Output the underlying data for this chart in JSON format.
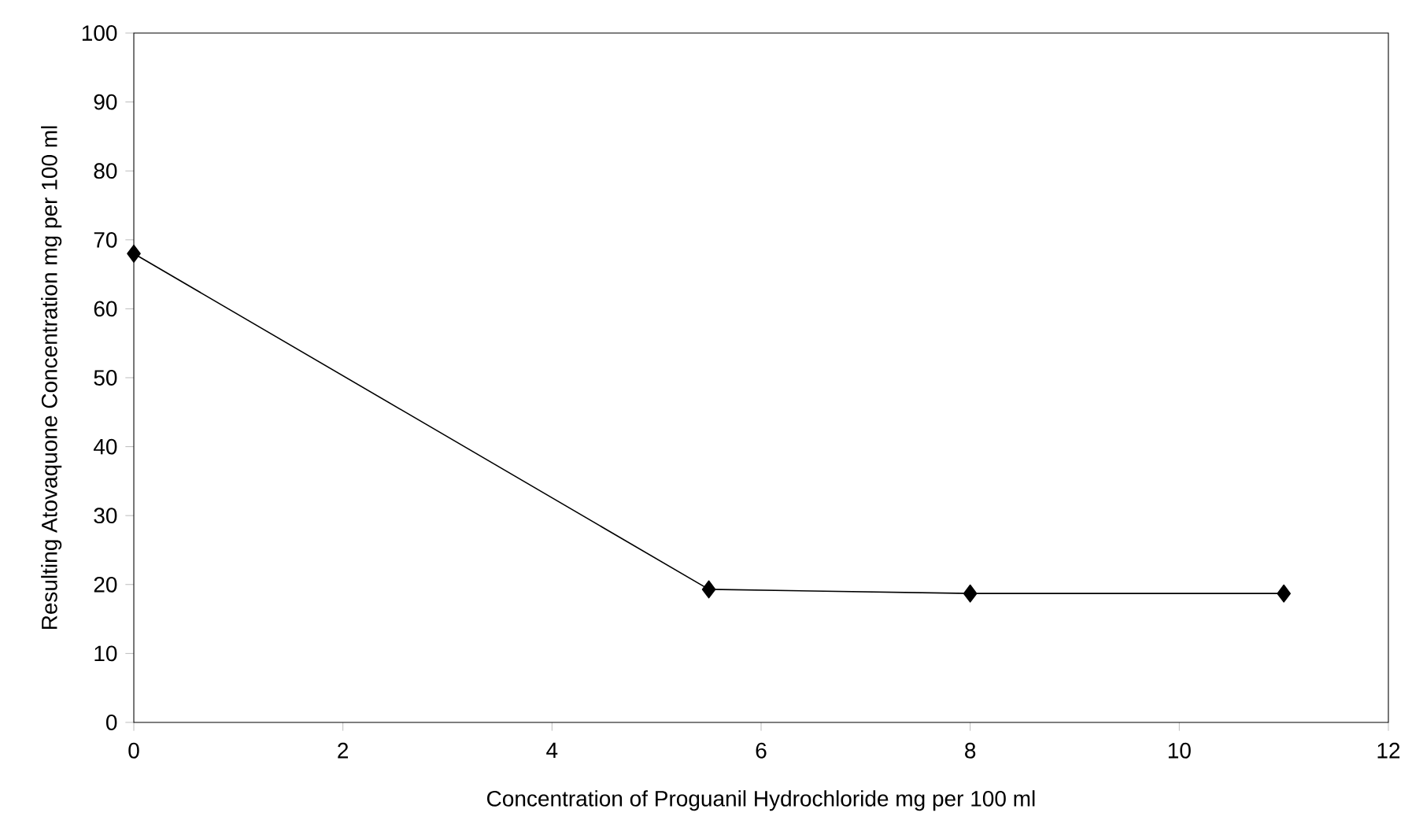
{
  "chart_data": {
    "type": "line",
    "xlabel": "Concentration of Proguanil Hydrochloride mg per 100 ml",
    "ylabel": "Resulting Atovaquone Concentration mg per 100 ml",
    "x": [
      0,
      5.5,
      8,
      11
    ],
    "series": [
      {
        "color": "#000000",
        "values": [
          68,
          19.3,
          18.7,
          18.7
        ]
      }
    ],
    "xlim": [
      0,
      12
    ],
    "ylim": [
      0,
      100
    ],
    "xticks": [
      0,
      2,
      4,
      6,
      8,
      10,
      12
    ],
    "yticks": [
      0,
      10,
      20,
      30,
      40,
      50,
      60,
      70,
      80,
      90,
      100
    ],
    "marker": "diamond",
    "line_style": "solid",
    "grid": false
  }
}
